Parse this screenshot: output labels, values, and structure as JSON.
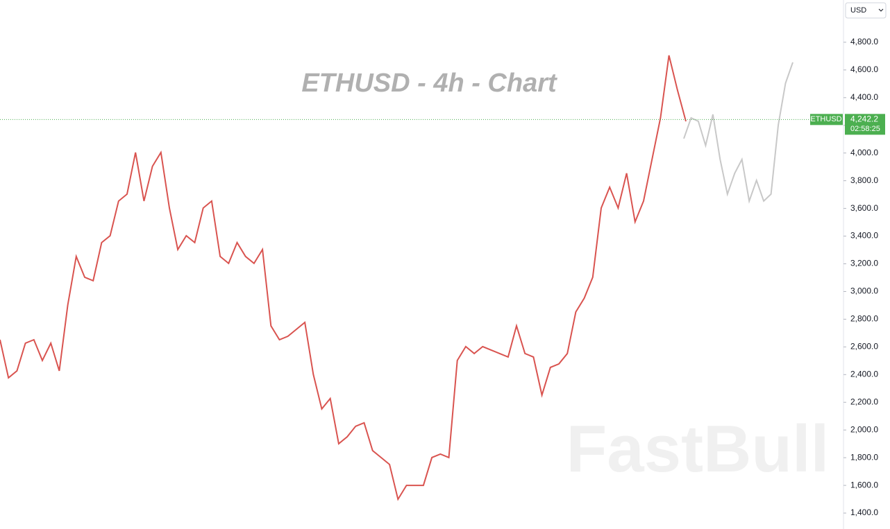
{
  "chart_data": {
    "type": "line",
    "title": "ETHUSD - 4h - Chart",
    "watermark": "FastBull",
    "currency": "USD",
    "symbol": "ETHUSD",
    "last_price": {
      "value": 4242.2,
      "label": "4,242.2"
    },
    "countdown": "02:58:25",
    "ylim": [
      1285,
      5105
    ],
    "yticks": [
      {
        "value": 1400,
        "label": "1,400.0"
      },
      {
        "value": 1600,
        "label": "1,600.0"
      },
      {
        "value": 1800,
        "label": "1,800.0"
      },
      {
        "value": 2000,
        "label": "2,000.0"
      },
      {
        "value": 2200,
        "label": "2,200.0"
      },
      {
        "value": 2400,
        "label": "2,400.0"
      },
      {
        "value": 2600,
        "label": "2,600.0"
      },
      {
        "value": 2800,
        "label": "2,800.0"
      },
      {
        "value": 3000,
        "label": "3,000.0"
      },
      {
        "value": 3200,
        "label": "3,200.0"
      },
      {
        "value": 3400,
        "label": "3,400.0"
      },
      {
        "value": 3600,
        "label": "3,600.0"
      },
      {
        "value": 3800,
        "label": "3,800.0"
      },
      {
        "value": 4000,
        "label": "4,000.0"
      },
      {
        "value": 4200,
        "label": "4,200.0"
      },
      {
        "value": 4400,
        "label": "4,400.0"
      },
      {
        "value": 4600,
        "label": "4,600.0"
      },
      {
        "value": 4800,
        "label": "4,800.0"
      }
    ],
    "series": [
      {
        "color": "#d9534f",
        "values": [
          2652,
          2377,
          2427,
          2627,
          2652,
          2502,
          2627,
          2427,
          2902,
          3253,
          3103,
          3078,
          3353,
          3403,
          3653,
          3703,
          4004,
          3653,
          3904,
          4004,
          3603,
          3303,
          3403,
          3353,
          3603,
          3653,
          3253,
          3203,
          3353,
          3253,
          3203,
          3303,
          2752,
          2652,
          2677,
          2727,
          2777,
          2402,
          2152,
          2227,
          1901,
          1951,
          2027,
          2052,
          1851,
          1801,
          1751,
          1500,
          1600,
          1600,
          1600,
          1801,
          1826,
          1801,
          2502,
          2602,
          2552,
          2602,
          2577,
          2552,
          2527,
          2752,
          2552,
          2527,
          2252,
          2452,
          2477,
          2552,
          2852,
          2952,
          3103,
          3603,
          3753,
          3603,
          3854,
          3503,
          3653,
          3954,
          4254,
          4705,
          4455,
          4229
        ]
      },
      {
        "color": "#c8c8c8",
        "values": [
          4104,
          4254,
          4229,
          4054,
          4279,
          3954,
          3703,
          3854,
          3954,
          3653,
          3803,
          3653,
          3703,
          4204,
          4504,
          4655
        ]
      }
    ]
  }
}
